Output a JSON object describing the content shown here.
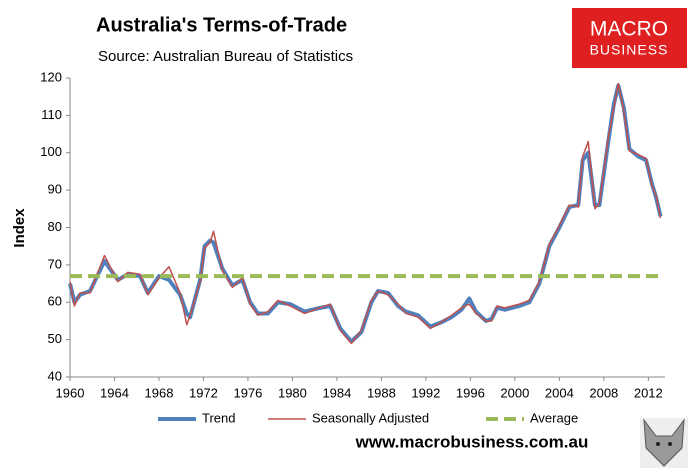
{
  "chart_data": {
    "type": "line",
    "title": "Australia's Terms-of-Trade",
    "subtitle": "Source: Australian Bureau of Statistics",
    "y_label": "Index",
    "logo": [
      "MACRO",
      "BUSINESS"
    ],
    "footer": "www.macrobusiness.com.au",
    "x": [
      1960,
      1960.4,
      1960.9,
      1961.8,
      1963.1,
      1964.3,
      1965.2,
      1966.3,
      1967,
      1968,
      1968.9,
      1969.9,
      1970.5,
      1970.8,
      1971.7,
      1972.1,
      1972.6,
      1972.9,
      1973.7,
      1974.6,
      1975.5,
      1976.2,
      1976.9,
      1977.8,
      1978.7,
      1979.8,
      1981.1,
      1982.5,
      1983.4,
      1984.3,
      1985.3,
      1986.2,
      1987.1,
      1987.7,
      1988.6,
      1989.5,
      1990.2,
      1991.3,
      1992.4,
      1993.3,
      1994.3,
      1995.2,
      1995.9,
      1996.5,
      1997.4,
      1997.9,
      1998.4,
      1999.1,
      2000.4,
      2001.3,
      2002.2,
      2003.1,
      2004,
      2004.9,
      2005.7,
      2006.1,
      2006.6,
      2007.2,
      2007.6,
      2008.4,
      2008.9,
      2009.3,
      2009.8,
      2010.3,
      2011.1,
      2011.8,
      2012.3,
      2012.7,
      2013.1
    ],
    "series": [
      {
        "name": "Trend",
        "color": "#4f81bd",
        "width": 4,
        "dash": false,
        "values": [
          65,
          60,
          62,
          63,
          71,
          66,
          67.5,
          67,
          62.5,
          67,
          66,
          62,
          57,
          56,
          66,
          75,
          76.5,
          76,
          69,
          64.5,
          66,
          60,
          57,
          57,
          60,
          59.5,
          57.5,
          58.5,
          59,
          53,
          49.5,
          52,
          60,
          63,
          62.5,
          59,
          57.5,
          56.5,
          53.5,
          54.5,
          56,
          58,
          61,
          57.5,
          55,
          55.5,
          58.5,
          58,
          59,
          60,
          65,
          75,
          80,
          85.5,
          86,
          98,
          100,
          86,
          86,
          103,
          113,
          118,
          112,
          101,
          99,
          98,
          92,
          88,
          83
        ]
      },
      {
        "name": "Seasonally Adjusted",
        "color": "#c0504d",
        "width": 1.5,
        "dash": false,
        "values": [
          65.5,
          59,
          62.5,
          62.5,
          72.5,
          65.5,
          68,
          67.5,
          62,
          66.5,
          69.5,
          62.5,
          54,
          56.5,
          65.5,
          74.5,
          76,
          79,
          68.5,
          64,
          66.5,
          59.5,
          56.5,
          57.5,
          60.5,
          59,
          57,
          58.5,
          59.5,
          52.5,
          49,
          52.5,
          60.5,
          63,
          62,
          59.5,
          57,
          56,
          53,
          54.5,
          56.5,
          58.5,
          59.5,
          57,
          55,
          55,
          59,
          58.5,
          59.5,
          60.5,
          65.5,
          75.5,
          80.5,
          86,
          85.5,
          99,
          103,
          85,
          86.5,
          104,
          112,
          118.5,
          111,
          100.5,
          99.5,
          98.5,
          91.5,
          88.5,
          82.5
        ]
      },
      {
        "name": "Average",
        "color": "#9bbb59",
        "width": 4,
        "dash": true,
        "values": [
          67,
          67,
          67,
          67,
          67,
          67,
          67,
          67,
          67,
          67,
          67,
          67,
          67,
          67,
          67,
          67,
          67,
          67,
          67,
          67,
          67,
          67,
          67,
          67,
          67,
          67,
          67,
          67,
          67,
          67,
          67,
          67,
          67,
          67,
          67,
          67,
          67,
          67,
          67,
          67,
          67,
          67,
          67,
          67,
          67,
          67,
          67,
          67,
          67,
          67,
          67,
          67,
          67,
          67,
          67,
          67,
          67,
          67,
          67,
          67,
          67,
          67,
          67,
          67,
          67,
          67,
          67,
          67,
          67
        ]
      }
    ],
    "xlim": [
      1960,
      2013.5
    ],
    "xticks": [
      1960,
      1964,
      1968,
      1972,
      1976,
      1980,
      1984,
      1988,
      1992,
      1996,
      2000,
      2004,
      2008,
      2012
    ],
    "ylim": [
      40,
      120
    ],
    "yticks": [
      40,
      50,
      60,
      70,
      80,
      90,
      100,
      110,
      120
    ],
    "grid": false,
    "legend": "bottom"
  }
}
